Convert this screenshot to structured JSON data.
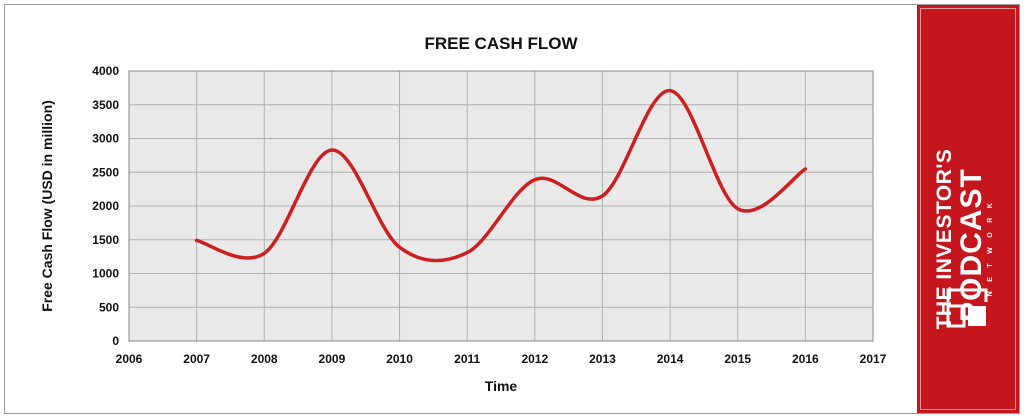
{
  "chart_data": {
    "type": "line",
    "title": "FREE CASH FLOW",
    "xlabel": "Time",
    "ylabel": "Free Cash Flow (USD in million)",
    "x": [
      2007,
      2008,
      2009,
      2010,
      2011,
      2012,
      2013,
      2014,
      2015,
      2016
    ],
    "series": [
      {
        "values": [
          1490,
          1300,
          2830,
          1390,
          1310,
          2390,
          2150,
          3710,
          1960,
          2550
        ]
      }
    ],
    "xlim": [
      2006,
      2017
    ],
    "ylim": [
      0,
      4000
    ],
    "xticks": [
      "2006",
      "2007",
      "2008",
      "2009",
      "2010",
      "2011",
      "2012",
      "2013",
      "2014",
      "2015",
      "2016",
      "2017"
    ],
    "yticks": [
      "0",
      "500",
      "1000",
      "1500",
      "2000",
      "2500",
      "3000",
      "3500",
      "4000"
    ],
    "grid": true,
    "smooth": true,
    "line_color": "#cc1f1f",
    "grid_color": "#b0b0b0",
    "plot_background": "#e9e9e9"
  },
  "brand": {
    "line1": "THE INVESTOR'S",
    "line2": "PODCAST",
    "line3": "NETWORK",
    "background": "#c4161c",
    "logo": "podcast-logo-icon"
  }
}
